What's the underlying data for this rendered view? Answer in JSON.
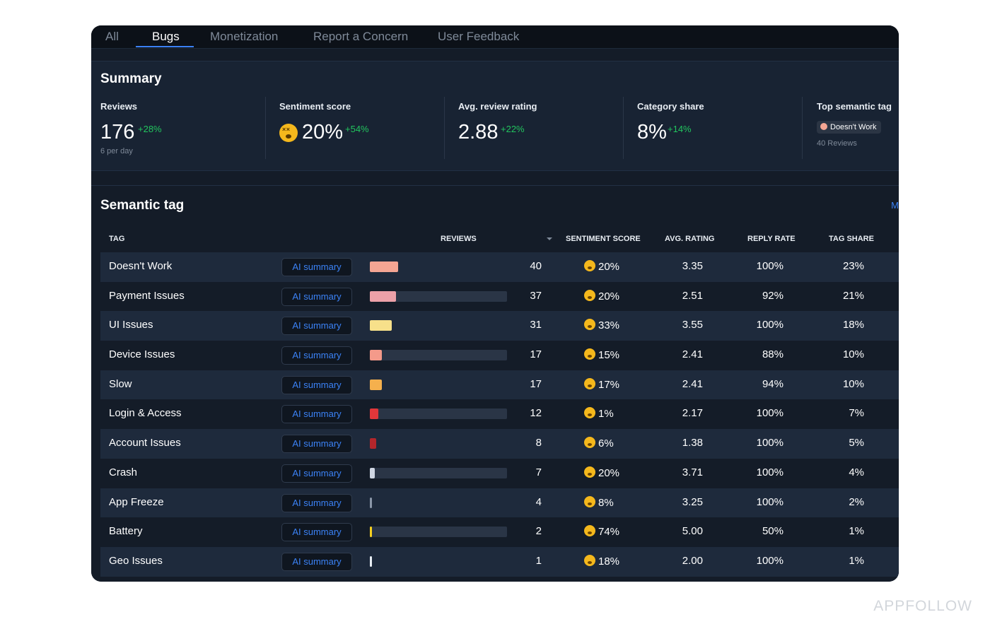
{
  "tabs": [
    {
      "label": "All"
    },
    {
      "label": "Bugs"
    },
    {
      "label": "Monetization"
    },
    {
      "label": "Report a Concern"
    },
    {
      "label": "User Feedback"
    }
  ],
  "summary": {
    "title": "Summary",
    "reviews": {
      "label": "Reviews",
      "value": "176",
      "delta": "+28%",
      "sub": "6 per day"
    },
    "sentiment": {
      "label": "Sentiment score",
      "value": "20%",
      "delta": "+54%",
      "icon": "dizzy-face-emoji"
    },
    "rating": {
      "label": "Avg. review rating",
      "value": "2.88",
      "delta": "+22%"
    },
    "category": {
      "label": "Category share",
      "value": "8%",
      "delta": "+14%"
    },
    "top_tag": {
      "label": "Top semantic tag",
      "tag": "Doesn't Work",
      "sub": "40 Reviews"
    }
  },
  "semantic": {
    "title": "Semantic tag",
    "more_link": "M",
    "headers": {
      "tag": "TAG",
      "reviews": "REVIEWS",
      "sentiment": "SENTIMENT SCORE",
      "rating": "AVG. RATING",
      "reply": "REPLY RATE",
      "share": "TAG SHARE"
    },
    "ai_label": "AI summary",
    "rows": [
      {
        "tag": "Doesn't Work",
        "reviews": "40",
        "sentiment": "20%",
        "rating": "3.35",
        "reply": "100%",
        "share": "23%",
        "fraction": 0.23,
        "color": "#f4a593"
      },
      {
        "tag": "Payment Issues",
        "reviews": "37",
        "sentiment": "20%",
        "rating": "2.51",
        "reply": "92%",
        "share": "21%",
        "fraction": 0.21,
        "color": "#eca0a8"
      },
      {
        "tag": "UI Issues",
        "reviews": "31",
        "sentiment": "33%",
        "rating": "3.55",
        "reply": "100%",
        "share": "18%",
        "fraction": 0.18,
        "color": "#f7e08a"
      },
      {
        "tag": "Device Issues",
        "reviews": "17",
        "sentiment": "15%",
        "rating": "2.41",
        "reply": "88%",
        "share": "10%",
        "fraction": 0.1,
        "color": "#f49a8a"
      },
      {
        "tag": "Slow",
        "reviews": "17",
        "sentiment": "17%",
        "rating": "2.41",
        "reply": "94%",
        "share": "10%",
        "fraction": 0.1,
        "color": "#f5b04d"
      },
      {
        "tag": "Login & Access",
        "reviews": "12",
        "sentiment": "1%",
        "rating": "2.17",
        "reply": "100%",
        "share": "7%",
        "fraction": 0.07,
        "color": "#e0373a"
      },
      {
        "tag": "Account Issues",
        "reviews": "8",
        "sentiment": "6%",
        "rating": "1.38",
        "reply": "100%",
        "share": "5%",
        "fraction": 0.05,
        "color": "#b3262b"
      },
      {
        "tag": "Crash",
        "reviews": "7",
        "sentiment": "20%",
        "rating": "3.71",
        "reply": "100%",
        "share": "4%",
        "fraction": 0.04,
        "color": "#cfd6e3"
      },
      {
        "tag": "App Freeze",
        "reviews": "4",
        "sentiment": "8%",
        "rating": "3.25",
        "reply": "100%",
        "share": "2%",
        "fraction": 0.02,
        "color": "#8a96a8"
      },
      {
        "tag": "Battery",
        "reviews": "2",
        "sentiment": "74%",
        "rating": "5.00",
        "reply": "50%",
        "share": "1%",
        "fraction": 0.01,
        "color": "#f5d020"
      },
      {
        "tag": "Geo Issues",
        "reviews": "1",
        "sentiment": "18%",
        "rating": "2.00",
        "reply": "100%",
        "share": "1%",
        "fraction": 0.01,
        "color": "#e8edf3"
      }
    ]
  },
  "watermark": "APPFOLLOW"
}
